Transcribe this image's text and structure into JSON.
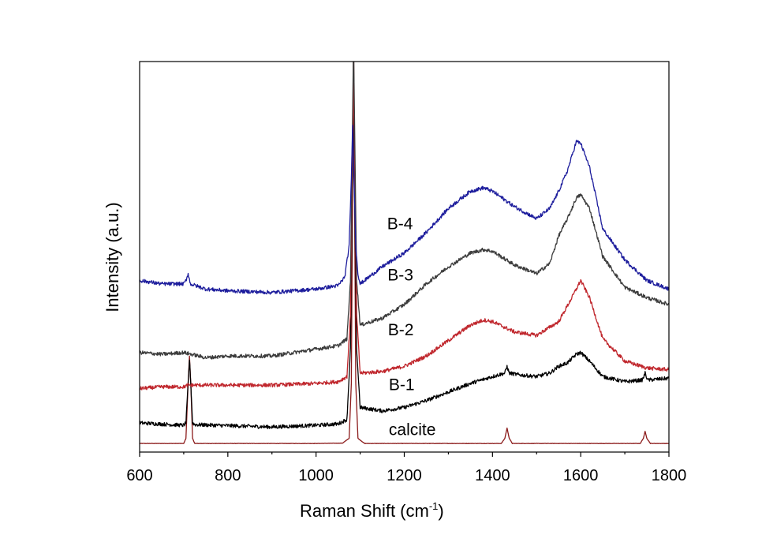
{
  "chart_data": {
    "type": "line",
    "title": "",
    "xlabel": "Raman Shift (cm",
    "xlabel_superscript": "-1",
    "xlabel_suffix": ")",
    "ylabel": "Intensity (a.u.)",
    "xlim": [
      600,
      1800
    ],
    "ylim": [
      0,
      100
    ],
    "xticks": [
      600,
      800,
      1000,
      1200,
      1400,
      1600,
      1800
    ],
    "grid": false,
    "y_tick_labels": false,
    "series": [
      {
        "name": "calcite",
        "color": "#8b1a1a",
        "points": [
          [
            600,
            2.5
          ],
          [
            700,
            2.5
          ],
          [
            705,
            4
          ],
          [
            710,
            20
          ],
          [
            713,
            28
          ],
          [
            716,
            20
          ],
          [
            720,
            4
          ],
          [
            725,
            2.5
          ],
          [
            1000,
            2.5
          ],
          [
            1060,
            2.6
          ],
          [
            1075,
            4
          ],
          [
            1080,
            20
          ],
          [
            1083,
            80
          ],
          [
            1085,
            125
          ],
          [
            1087,
            80
          ],
          [
            1090,
            20
          ],
          [
            1095,
            4
          ],
          [
            1110,
            2.5
          ],
          [
            1420,
            2.5
          ],
          [
            1428,
            4
          ],
          [
            1433,
            7
          ],
          [
            1438,
            4
          ],
          [
            1445,
            2.5
          ],
          [
            1735,
            2.5
          ],
          [
            1742,
            4
          ],
          [
            1746,
            6
          ],
          [
            1750,
            4
          ],
          [
            1758,
            2.5
          ],
          [
            1800,
            2.5
          ]
        ]
      },
      {
        "name": "B-1",
        "color": "#000000",
        "points": [
          [
            600,
            8.5
          ],
          [
            700,
            7.8
          ],
          [
            705,
            8.5
          ],
          [
            710,
            20
          ],
          [
            713,
            27
          ],
          [
            716,
            20
          ],
          [
            720,
            8.5
          ],
          [
            725,
            8
          ],
          [
            900,
            7.3
          ],
          [
            1000,
            7.8
          ],
          [
            1050,
            8.2
          ],
          [
            1070,
            9.5
          ],
          [
            1078,
            30
          ],
          [
            1082,
            70
          ],
          [
            1085,
            100
          ],
          [
            1088,
            70
          ],
          [
            1092,
            30
          ],
          [
            1100,
            13
          ],
          [
            1150,
            12
          ],
          [
            1200,
            13
          ],
          [
            1250,
            15
          ],
          [
            1300,
            17.5
          ],
          [
            1350,
            20
          ],
          [
            1400,
            22
          ],
          [
            1428,
            23
          ],
          [
            1433,
            25
          ],
          [
            1438,
            23
          ],
          [
            1460,
            22.5
          ],
          [
            1500,
            22
          ],
          [
            1530,
            23
          ],
          [
            1550,
            25
          ],
          [
            1570,
            26
          ],
          [
            1590,
            28.5
          ],
          [
            1600,
            29
          ],
          [
            1620,
            26.5
          ],
          [
            1650,
            22
          ],
          [
            1700,
            20.5
          ],
          [
            1740,
            21
          ],
          [
            1746,
            23
          ],
          [
            1752,
            21
          ],
          [
            1800,
            21.5
          ]
        ]
      },
      {
        "name": "B-2",
        "color": "#c0272d",
        "points": [
          [
            600,
            18.5
          ],
          [
            650,
            19
          ],
          [
            700,
            19
          ],
          [
            710,
            19.5
          ],
          [
            800,
            19.5
          ],
          [
            900,
            19.5
          ],
          [
            1000,
            20
          ],
          [
            1050,
            20.5
          ],
          [
            1070,
            22
          ],
          [
            1078,
            40
          ],
          [
            1082,
            80
          ],
          [
            1085,
            110
          ],
          [
            1088,
            80
          ],
          [
            1092,
            40
          ],
          [
            1100,
            23
          ],
          [
            1150,
            23.5
          ],
          [
            1200,
            25
          ],
          [
            1250,
            28
          ],
          [
            1300,
            32.5
          ],
          [
            1350,
            37
          ],
          [
            1380,
            38.5
          ],
          [
            1400,
            38
          ],
          [
            1450,
            35
          ],
          [
            1500,
            34
          ],
          [
            1550,
            38
          ],
          [
            1580,
            45
          ],
          [
            1600,
            50
          ],
          [
            1620,
            45
          ],
          [
            1650,
            33
          ],
          [
            1700,
            26.5
          ],
          [
            1750,
            24.5
          ],
          [
            1800,
            24
          ]
        ]
      },
      {
        "name": "B-3",
        "color": "#3c3c3c",
        "points": [
          [
            600,
            29
          ],
          [
            650,
            28.5
          ],
          [
            700,
            29
          ],
          [
            750,
            27.5
          ],
          [
            800,
            28
          ],
          [
            900,
            28
          ],
          [
            1000,
            30
          ],
          [
            1050,
            31
          ],
          [
            1070,
            33
          ],
          [
            1078,
            50
          ],
          [
            1082,
            90
          ],
          [
            1085,
            120
          ],
          [
            1088,
            90
          ],
          [
            1092,
            50
          ],
          [
            1100,
            37
          ],
          [
            1150,
            39
          ],
          [
            1200,
            43
          ],
          [
            1250,
            49
          ],
          [
            1300,
            54
          ],
          [
            1350,
            58
          ],
          [
            1380,
            59
          ],
          [
            1400,
            58.5
          ],
          [
            1450,
            54.5
          ],
          [
            1500,
            52
          ],
          [
            1530,
            55
          ],
          [
            1550,
            63
          ],
          [
            1570,
            68
          ],
          [
            1590,
            74
          ],
          [
            1600,
            75
          ],
          [
            1620,
            71
          ],
          [
            1650,
            57
          ],
          [
            1700,
            48
          ],
          [
            1750,
            45
          ],
          [
            1800,
            43
          ]
        ]
      },
      {
        "name": "B-4",
        "color": "#1c1c9c",
        "points": [
          [
            600,
            50
          ],
          [
            650,
            49
          ],
          [
            700,
            49
          ],
          [
            705,
            50
          ],
          [
            710,
            52
          ],
          [
            715,
            49
          ],
          [
            750,
            47.5
          ],
          [
            800,
            47
          ],
          [
            900,
            46.5
          ],
          [
            1000,
            47.5
          ],
          [
            1050,
            48.5
          ],
          [
            1065,
            51
          ],
          [
            1075,
            60
          ],
          [
            1080,
            80
          ],
          [
            1083,
            95
          ],
          [
            1086,
            80
          ],
          [
            1090,
            60
          ],
          [
            1095,
            52
          ],
          [
            1100,
            49
          ],
          [
            1150,
            54
          ],
          [
            1200,
            58
          ],
          [
            1250,
            64
          ],
          [
            1300,
            71
          ],
          [
            1350,
            76
          ],
          [
            1380,
            77
          ],
          [
            1400,
            76
          ],
          [
            1450,
            71.5
          ],
          [
            1500,
            68
          ],
          [
            1530,
            71
          ],
          [
            1550,
            76
          ],
          [
            1570,
            82
          ],
          [
            1590,
            90.5
          ],
          [
            1600,
            90
          ],
          [
            1620,
            83
          ],
          [
            1650,
            65
          ],
          [
            1700,
            56
          ],
          [
            1750,
            50
          ],
          [
            1800,
            47.5
          ]
        ]
      }
    ],
    "annotations": [
      {
        "text": "B-4",
        "x": 1161,
        "y": 65
      },
      {
        "text": "B-3",
        "x": 1162,
        "y": 50
      },
      {
        "text": "B-2",
        "x": 1163,
        "y": 34
      },
      {
        "text": "B-1",
        "x": 1165,
        "y": 18
      },
      {
        "text": "calcite",
        "x": 1165,
        "y": 5
      }
    ]
  }
}
